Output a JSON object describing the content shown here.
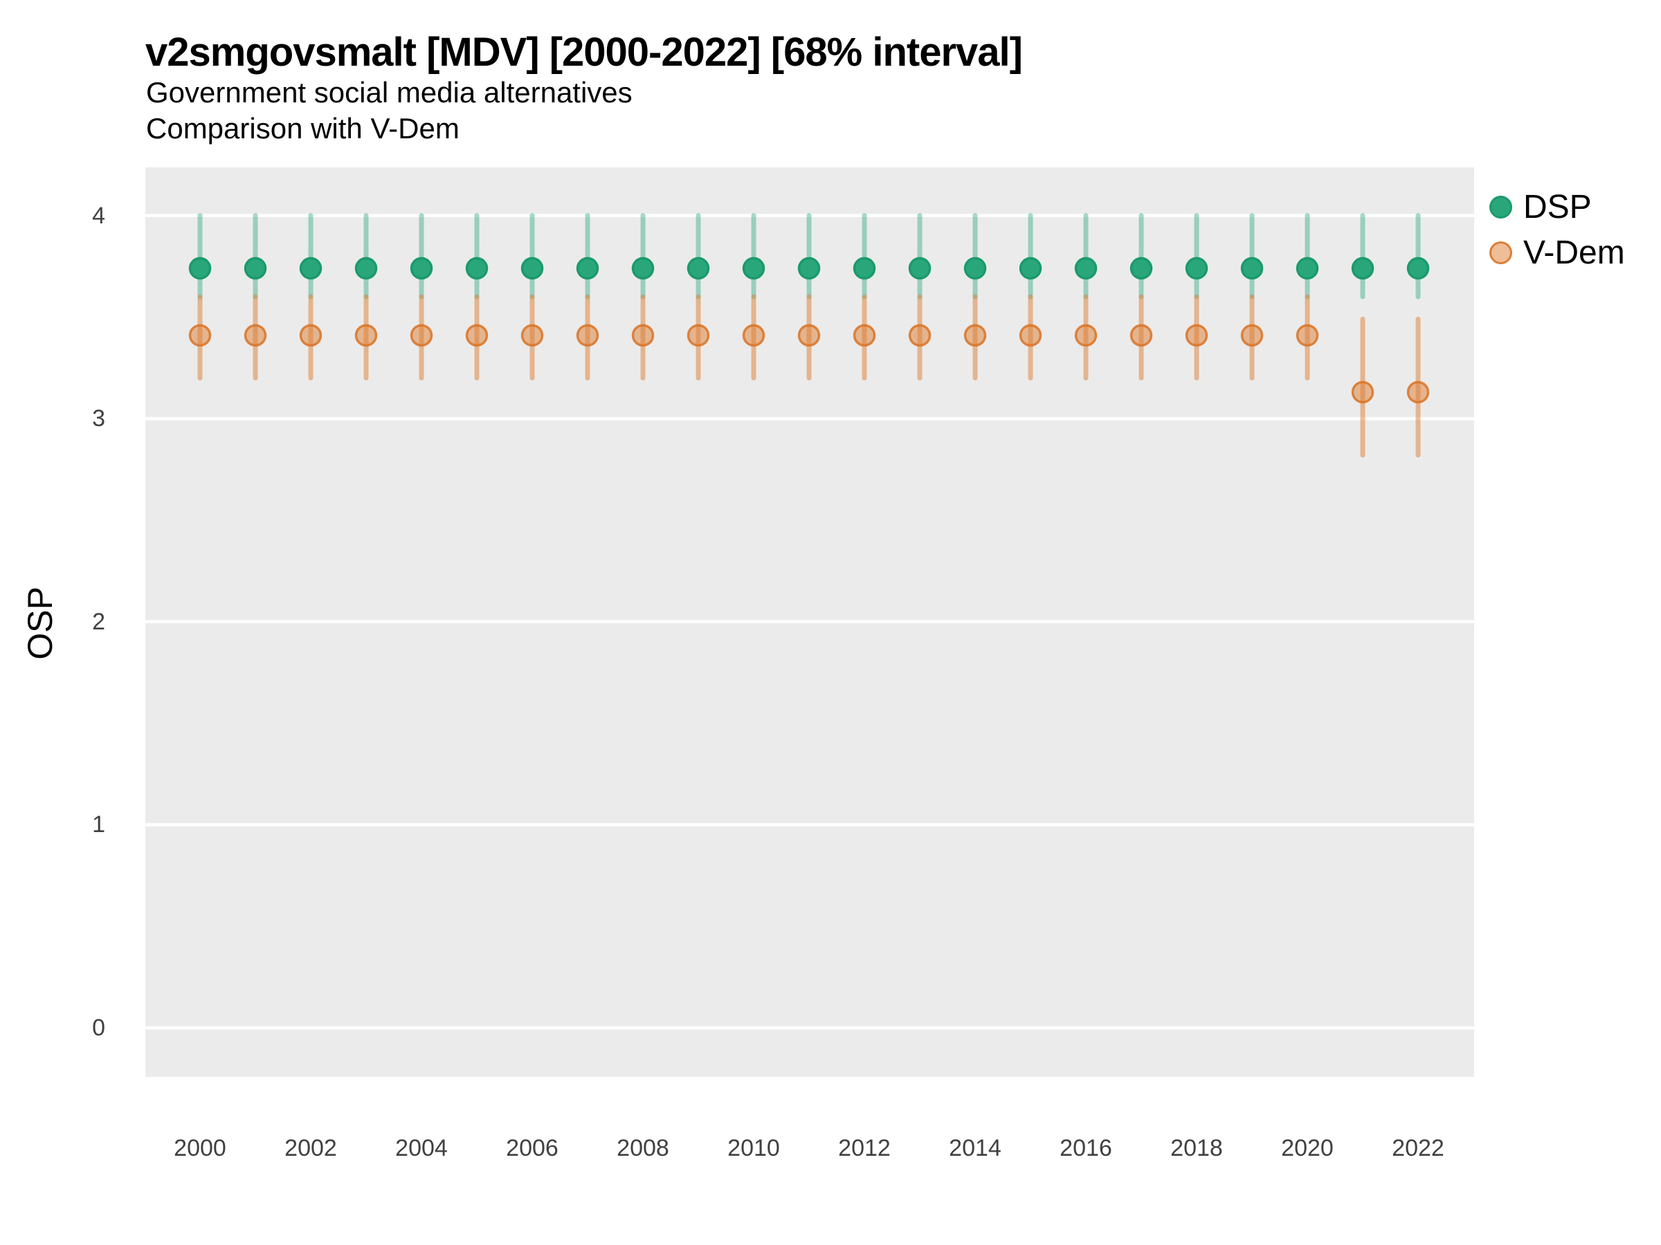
{
  "header": {
    "title": "v2smgovsmalt [MDV] [2000-2022] [68% interval]",
    "subtitle1": "Government social media alternatives",
    "subtitle2": "Comparison with V-Dem"
  },
  "chart_data": {
    "type": "pointrange",
    "title": "v2smgovsmalt [MDV] [2000-2022] [68% interval]",
    "subtitle": [
      "Government social media alternatives",
      "Comparison with V-Dem"
    ],
    "interval_level": "68%",
    "xlabel": "",
    "ylabel": "OSP",
    "ylim": [
      -0.25,
      4.25
    ],
    "yticks": [
      4,
      3,
      2,
      1,
      0
    ],
    "xticks": [
      2000,
      2002,
      2004,
      2006,
      2008,
      2010,
      2012,
      2014,
      2016,
      2018,
      2020,
      2022
    ],
    "grid": "horizontal major gridlines, white on gray panel",
    "legend_position": "right",
    "years": [
      2000,
      2001,
      2002,
      2003,
      2004,
      2005,
      2006,
      2007,
      2008,
      2009,
      2010,
      2011,
      2012,
      2013,
      2014,
      2015,
      2016,
      2017,
      2018,
      2019,
      2020,
      2021,
      2022
    ],
    "series": [
      {
        "name": "DSP",
        "point_color": "#29a77b",
        "point_stroke": "#1b9a6c",
        "bar_color": "rgba(41,167,123,0.42)",
        "value": [
          3.74,
          3.74,
          3.74,
          3.74,
          3.74,
          3.74,
          3.74,
          3.74,
          3.74,
          3.74,
          3.74,
          3.74,
          3.74,
          3.74,
          3.74,
          3.74,
          3.74,
          3.74,
          3.74,
          3.74,
          3.74,
          3.74,
          3.74
        ],
        "lo": [
          3.6,
          3.6,
          3.6,
          3.6,
          3.6,
          3.6,
          3.6,
          3.6,
          3.6,
          3.6,
          3.6,
          3.6,
          3.6,
          3.6,
          3.6,
          3.6,
          3.6,
          3.6,
          3.6,
          3.6,
          3.6,
          3.6,
          3.6
        ],
        "hi": [
          4.0,
          4.0,
          4.0,
          4.0,
          4.0,
          4.0,
          4.0,
          4.0,
          4.0,
          4.0,
          4.0,
          4.0,
          4.0,
          4.0,
          4.0,
          4.0,
          4.0,
          4.0,
          4.0,
          4.0,
          4.0,
          4.0,
          4.0
        ]
      },
      {
        "name": "V-Dem",
        "point_color": "rgba(221,125,50,0.5)",
        "point_stroke": "rgba(217,115,38,0.85)",
        "bar_color": "rgba(221,125,50,0.5)",
        "value": [
          3.41,
          3.41,
          3.41,
          3.41,
          3.41,
          3.41,
          3.41,
          3.41,
          3.41,
          3.41,
          3.41,
          3.41,
          3.41,
          3.41,
          3.41,
          3.41,
          3.41,
          3.41,
          3.41,
          3.41,
          3.41,
          3.13,
          3.13
        ],
        "lo": [
          3.2,
          3.2,
          3.2,
          3.2,
          3.2,
          3.2,
          3.2,
          3.2,
          3.2,
          3.2,
          3.2,
          3.2,
          3.2,
          3.2,
          3.2,
          3.2,
          3.2,
          3.2,
          3.2,
          3.2,
          3.2,
          2.82,
          2.82
        ],
        "hi": [
          3.6,
          3.6,
          3.6,
          3.6,
          3.6,
          3.6,
          3.6,
          3.6,
          3.6,
          3.6,
          3.6,
          3.6,
          3.6,
          3.6,
          3.6,
          3.6,
          3.6,
          3.6,
          3.6,
          3.6,
          3.6,
          3.49,
          3.49
        ]
      }
    ],
    "panel_background": "#ebebeb",
    "gridline_color": "#ffffff",
    "tick_label_color": "#404040"
  }
}
